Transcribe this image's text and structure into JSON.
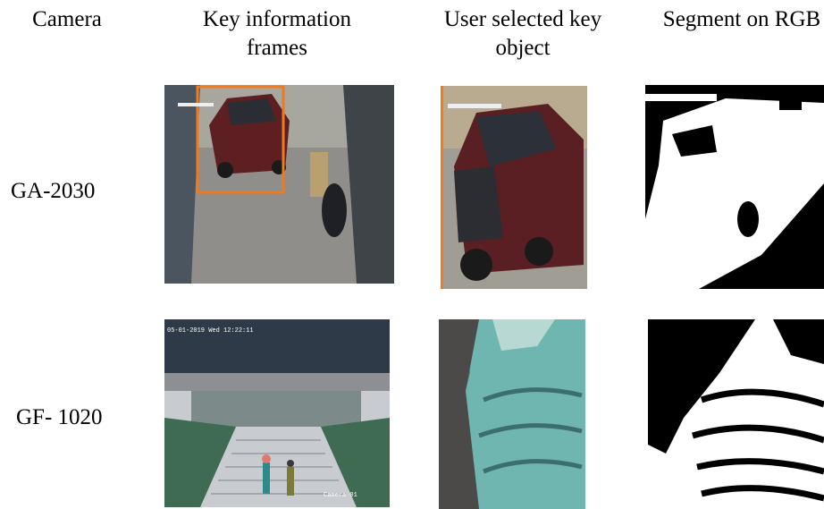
{
  "table": {
    "headers": [
      "Camera",
      "Key information frames",
      "User selected key object",
      "Segment on RGB"
    ],
    "rows": [
      {
        "camera": "GA-2030"
      },
      {
        "camera": "GF- 1020",
        "frame_timestamp": "05-01-2019 Wed 12:22:11",
        "frame_camera": "Camera 01"
      }
    ]
  }
}
